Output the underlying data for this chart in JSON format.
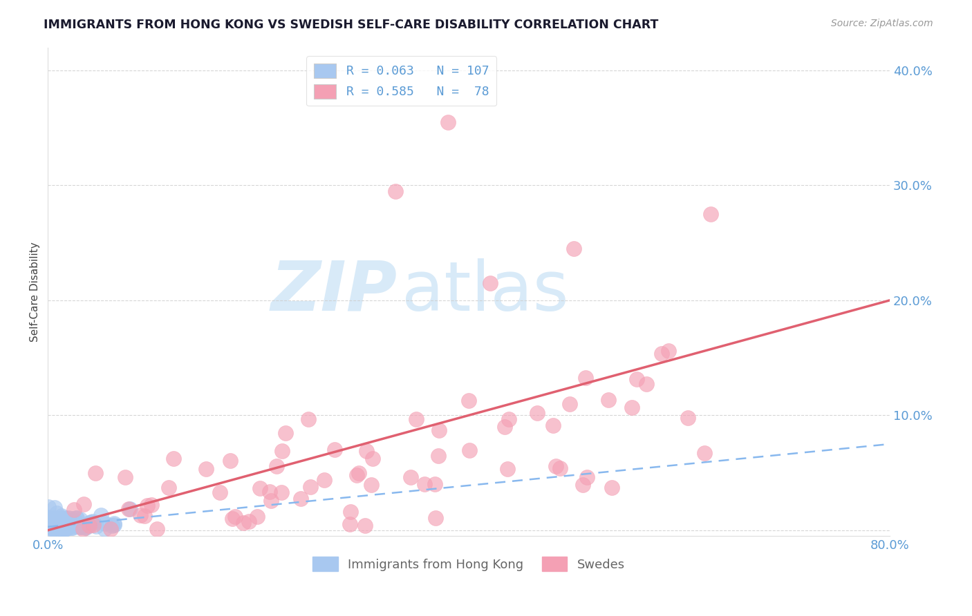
{
  "title": "IMMIGRANTS FROM HONG KONG VS SWEDISH SELF-CARE DISABILITY CORRELATION CHART",
  "source": "Source: ZipAtlas.com",
  "ylabel": "Self-Care Disability",
  "ytick_vals": [
    0.0,
    0.1,
    0.2,
    0.3,
    0.4
  ],
  "ytick_labels": [
    "",
    "10.0%",
    "20.0%",
    "30.0%",
    "40.0%"
  ],
  "xtick_vals": [
    0.0,
    0.8
  ],
  "xtick_labels": [
    "0.0%",
    "80.0%"
  ],
  "xlim": [
    0.0,
    0.8
  ],
  "ylim": [
    -0.005,
    0.42
  ],
  "legend_label1": "Immigrants from Hong Kong",
  "legend_label2": "Swedes",
  "blue_color": "#A8C8F0",
  "pink_color": "#F4A0B4",
  "blue_line_color": "#88B8EE",
  "pink_line_color": "#E06070",
  "label_color": "#5B9BD5",
  "bg_color": "#FFFFFF",
  "plot_bg": "#FFFFFF",
  "grid_color": "#CCCCCC",
  "watermark_color": "#D8EAF8",
  "title_color": "#1A1A2E",
  "source_color": "#999999",
  "legend_text_color": "#5B9BD5",
  "bottom_legend_color": "#666666",
  "blue_seed": 42,
  "pink_seed": 77,
  "N_blue": 107,
  "N_pink": 78,
  "pink_line_x0": 0.0,
  "pink_line_y0": 0.0,
  "pink_line_x1": 0.8,
  "pink_line_y1": 0.2,
  "blue_line_x0": 0.0,
  "blue_line_y0": 0.003,
  "blue_line_x1": 0.8,
  "blue_line_y1": 0.075
}
